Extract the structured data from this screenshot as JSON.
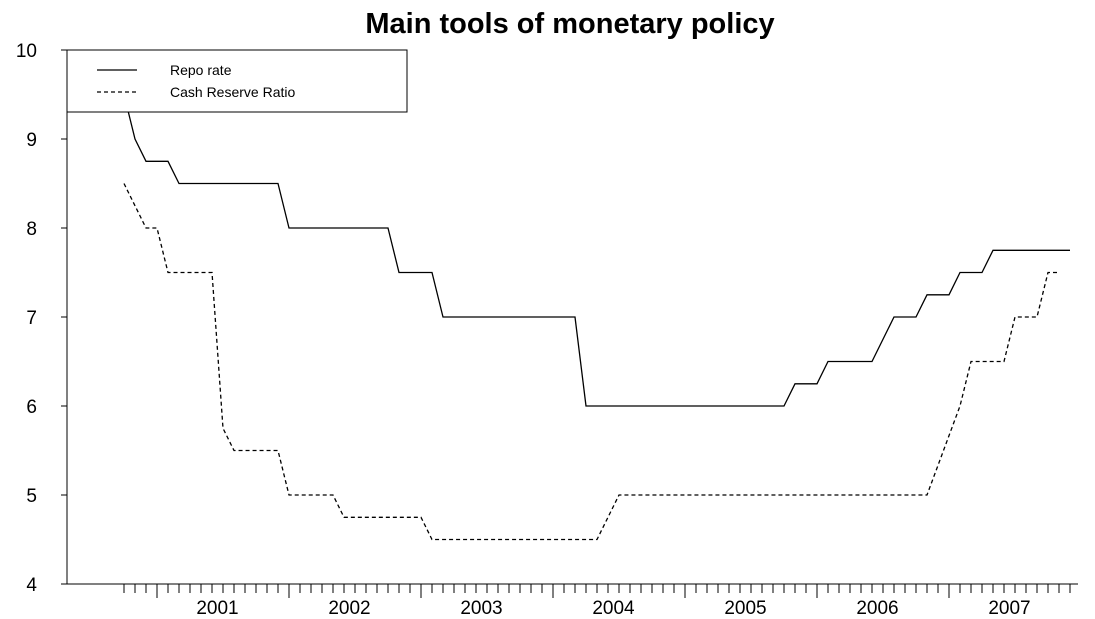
{
  "chart_data": {
    "type": "line",
    "title": "Main tools of monetary policy",
    "xlabel": "",
    "ylabel": "",
    "ylim": [
      4,
      10
    ],
    "y_ticks": [
      4,
      5,
      6,
      7,
      8,
      9,
      10
    ],
    "x_tick_labels": [
      "2001",
      "2002",
      "2003",
      "2004",
      "2005",
      "2006",
      "2007"
    ],
    "xlim": [
      "2000-07",
      "2007-12"
    ],
    "grid": false,
    "legend_position": "top-left",
    "series": [
      {
        "name": "Repo rate",
        "style": "solid",
        "color": "#000000",
        "points": [
          [
            "2000-09",
            10.0
          ],
          [
            "2000-11",
            9.0
          ],
          [
            "2000-12",
            8.75
          ],
          [
            "2001-02",
            8.75
          ],
          [
            "2001-03",
            8.5
          ],
          [
            "2001-12",
            8.5
          ],
          [
            "2002-01",
            8.0
          ],
          [
            "2002-10",
            8.0
          ],
          [
            "2002-11",
            7.5
          ],
          [
            "2003-02",
            7.5
          ],
          [
            "2003-03",
            7.0
          ],
          [
            "2004-03",
            7.0
          ],
          [
            "2004-04",
            6.0
          ],
          [
            "2005-10",
            6.0
          ],
          [
            "2005-11",
            6.25
          ],
          [
            "2006-01",
            6.25
          ],
          [
            "2006-02",
            6.5
          ],
          [
            "2006-06",
            6.5
          ],
          [
            "2006-08",
            7.0
          ],
          [
            "2006-10",
            7.0
          ],
          [
            "2006-11",
            7.25
          ],
          [
            "2007-01",
            7.25
          ],
          [
            "2007-02",
            7.5
          ],
          [
            "2007-04",
            7.5
          ],
          [
            "2007-05",
            7.75
          ],
          [
            "2007-12",
            7.75
          ]
        ]
      },
      {
        "name": "Cash Reserve Ratio",
        "style": "dashed",
        "color": "#000000",
        "points": [
          [
            "2000-10",
            8.5
          ],
          [
            "2000-12",
            8.0
          ],
          [
            "2001-01",
            8.0
          ],
          [
            "2001-02",
            7.5
          ],
          [
            "2001-06",
            7.5
          ],
          [
            "2001-07",
            5.75
          ],
          [
            "2001-08",
            5.5
          ],
          [
            "2001-12",
            5.5
          ],
          [
            "2002-01",
            5.0
          ],
          [
            "2002-03",
            5.0
          ],
          [
            "2002-05",
            5.0
          ],
          [
            "2002-06",
            4.75
          ],
          [
            "2002-09",
            4.75
          ],
          [
            "2003-01",
            4.75
          ],
          [
            "2003-02",
            4.5
          ],
          [
            "2004-05",
            4.5
          ],
          [
            "2004-07",
            5.0
          ],
          [
            "2006-11",
            5.0
          ],
          [
            "2007-02",
            6.0
          ],
          [
            "2007-03",
            6.5
          ],
          [
            "2007-06",
            6.5
          ],
          [
            "2007-07",
            7.0
          ],
          [
            "2007-09",
            7.0
          ],
          [
            "2007-10",
            7.5
          ],
          [
            "2007-11",
            7.5
          ]
        ]
      }
    ]
  }
}
